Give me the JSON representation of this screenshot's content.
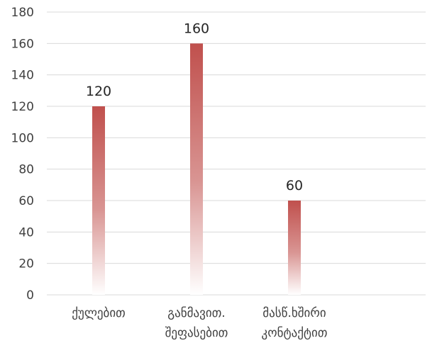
{
  "chart_data": {
    "type": "bar",
    "categories": [
      [
        "ქულებით"
      ],
      [
        "განმავით.",
        "შეფასებით"
      ],
      [
        "მასწ.ხშირი",
        "კონტაქტით"
      ]
    ],
    "values": [
      120,
      160,
      60
    ],
    "data_labels": [
      "120",
      "160",
      "60"
    ],
    "ylim": [
      0,
      180
    ],
    "yticks": [
      "0",
      "20",
      "40",
      "60",
      "80",
      "100",
      "120",
      "140",
      "160",
      "180"
    ],
    "grid": true,
    "legend": "none",
    "bar_color": "#c0504d",
    "bar_fade_color": "#ffffff"
  }
}
